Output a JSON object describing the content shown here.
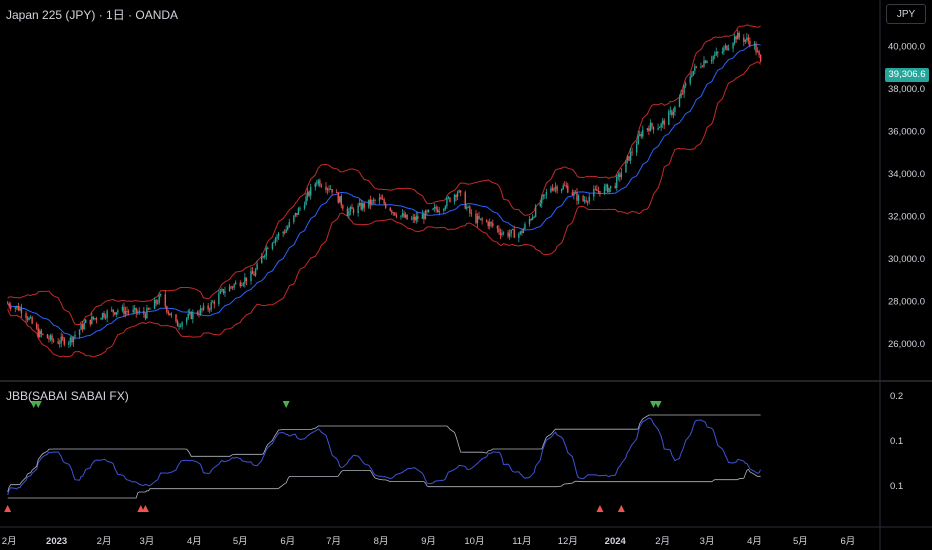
{
  "header": {
    "title": "Japan 225 (JPY) · 1日 · OANDA",
    "currency": "JPY"
  },
  "price_tag": "39,306.6",
  "indicator": {
    "title": "JBB(SABAI SABAI FX)"
  },
  "colors": {
    "background": "#000000",
    "up": "#26a69a",
    "down": "#ef5350",
    "bb_band": "#c62828",
    "bb_basis": "#2962ff",
    "osc": "#3f51d6",
    "osc_bounds": "#b2b5be",
    "buy_signal": "#ef5350",
    "sell_signal": "#4caf50",
    "axis_text": "#d1d4dc"
  },
  "chart_data": [
    {
      "type": "candlestick",
      "title": "Japan 225 (JPY) · 1日 · OANDA",
      "y_axis": {
        "ticks": [
          "26,000.0",
          "28,000.0",
          "30,000.0",
          "32,000.0",
          "34,000.0",
          "36,000.0",
          "38,000.0",
          "40,000.0"
        ],
        "ylim": [
          24300,
          42200
        ]
      },
      "x_axis": {
        "ticks": [
          "2月",
          "2023",
          "2月",
          "3月",
          "4月",
          "5月",
          "6月",
          "7月",
          "8月",
          "9月",
          "10月",
          "11月",
          "12月",
          "2024",
          "2月",
          "3月",
          "4月",
          "5月",
          "6月"
        ],
        "bold_ticks": [
          "2023",
          "2024"
        ]
      },
      "approx_close_path": [
        [
          "2022-11-30",
          27900
        ],
        [
          "2022-12-10",
          27600
        ],
        [
          "2022-12-20",
          26500
        ],
        [
          "2022-12-31",
          26100
        ],
        [
          "2023-01-10",
          26200
        ],
        [
          "2023-01-20",
          27000
        ],
        [
          "2023-01-31",
          27400
        ],
        [
          "2023-02-10",
          27600
        ],
        [
          "2023-02-20",
          27500
        ],
        [
          "2023-02-28",
          27400
        ],
        [
          "2023-03-10",
          28200
        ],
        [
          "2023-03-20",
          26900
        ],
        [
          "2023-03-31",
          27400
        ],
        [
          "2023-04-10",
          27700
        ],
        [
          "2023-04-20",
          28500
        ],
        [
          "2023-04-30",
          28900
        ],
        [
          "2023-05-10",
          29300
        ],
        [
          "2023-05-20",
          30800
        ],
        [
          "2023-05-31",
          31400
        ],
        [
          "2023-06-10",
          32500
        ],
        [
          "2023-06-20",
          33700
        ],
        [
          "2023-06-30",
          33300
        ],
        [
          "2023-07-10",
          32200
        ],
        [
          "2023-07-20",
          32500
        ],
        [
          "2023-07-31",
          32800
        ],
        [
          "2023-08-10",
          32200
        ],
        [
          "2023-08-20",
          31800
        ],
        [
          "2023-08-31",
          32100
        ],
        [
          "2023-09-10",
          32500
        ],
        [
          "2023-09-20",
          33200
        ],
        [
          "2023-09-30",
          31900
        ],
        [
          "2023-10-10",
          31700
        ],
        [
          "2023-10-20",
          31200
        ],
        [
          "2023-10-31",
          31200
        ],
        [
          "2023-11-10",
          32300
        ],
        [
          "2023-11-20",
          33400
        ],
        [
          "2023-11-30",
          33400
        ],
        [
          "2023-12-10",
          32700
        ],
        [
          "2023-12-20",
          33200
        ],
        [
          "2023-12-31",
          33400
        ],
        [
          "2024-01-10",
          34800
        ],
        [
          "2024-01-20",
          36200
        ],
        [
          "2024-01-31",
          36300
        ],
        [
          "2024-02-10",
          37200
        ],
        [
          "2024-02-20",
          38800
        ],
        [
          "2024-02-29",
          39400
        ],
        [
          "2024-03-10",
          39700
        ],
        [
          "2024-03-20",
          40500
        ],
        [
          "2024-03-31",
          40200
        ],
        [
          "2024-04-05",
          39306.6
        ]
      ],
      "last_price": 39306.6,
      "series": [
        {
          "name": "Bollinger Upper",
          "color": "#c62828"
        },
        {
          "name": "Bollinger Basis",
          "color": "#2962ff"
        },
        {
          "name": "Bollinger Lower",
          "color": "#c62828"
        }
      ]
    },
    {
      "type": "line",
      "title": "JBB(SABAI SABAI FX)",
      "y_axis": {
        "ticks": [
          "0.2",
          "0.1",
          "0.1"
        ]
      },
      "signals": {
        "buy_markers_x": [
          "2022-11-30",
          "2023-02-25",
          "2023-02-28",
          "2023-12-22",
          "2024-01-05"
        ],
        "sell_markers_x": [
          "2022-12-17",
          "2022-12-20",
          "2023-05-31",
          "2024-01-26",
          "2024-01-29"
        ]
      }
    }
  ]
}
